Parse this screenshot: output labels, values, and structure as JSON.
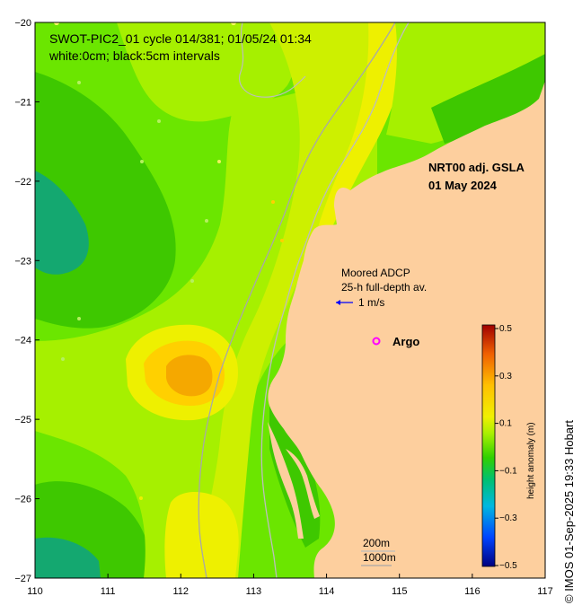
{
  "title_line1": "SWOT-PIC2_01 cycle 014/381; 01/05/24 01:34",
  "title_line2": "white:0cm; black:5cm intervals",
  "product_line1": "NRT00 adj. GSLA",
  "product_line2": "01 May 2024",
  "adcp_line1": "Moored ADCP",
  "adcp_line2": "25-h full-depth av.",
  "adcp_scale": "1 m/s",
  "argo_label": "Argo",
  "isobath_200": "200m",
  "isobath_1000": "1000m",
  "colorbar": {
    "title": "height anomaly (m)",
    "ticks": [
      "0.5",
      "0.3",
      "0.1",
      "−0.1",
      "−0.3",
      "−0.5"
    ]
  },
  "credit": "© IMOS 01-Sep-2025 19:33 Hobart",
  "x_ticks": [
    "110",
    "111",
    "112",
    "113",
    "114",
    "115",
    "116",
    "117"
  ],
  "y_ticks": [
    "−20",
    "−21",
    "−22",
    "−23",
    "−24",
    "−25",
    "−26",
    "−27"
  ],
  "colors": {
    "land": "#fdcf9e",
    "green_light": "#a6f000",
    "green": "#6be600",
    "green_mid": "#3ec800",
    "green_dark": "#1fae3c",
    "teal": "#14a870",
    "yellow": "#eef000",
    "yellow_green": "#cdf000",
    "orange": "#f5a800",
    "orange_light": "#ffd000"
  }
}
